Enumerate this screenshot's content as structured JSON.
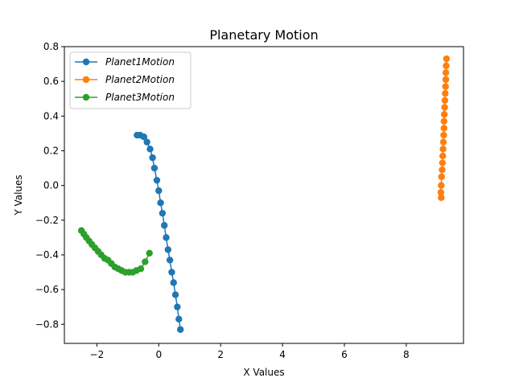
{
  "chart_data": {
    "type": "line",
    "title": "Planetary Motion",
    "xlabel": "X Values",
    "ylabel": "Y Values",
    "xlim": [
      -3.05,
      9.85
    ],
    "ylim": [
      -0.91,
      0.8
    ],
    "xticks": [
      -2,
      0,
      2,
      4,
      6,
      8
    ],
    "xtick_labels": [
      "−2",
      "0",
      "2",
      "4",
      "6",
      "8"
    ],
    "yticks": [
      -0.8,
      -0.6,
      -0.4,
      -0.2,
      0.0,
      0.2,
      0.4,
      0.6,
      0.8
    ],
    "ytick_labels": [
      "−0.8",
      "−0.6",
      "−0.4",
      "−0.2",
      "0.0",
      "0.2",
      "0.4",
      "0.6",
      "0.8"
    ],
    "grid": false,
    "legend_position": "top-left",
    "series": [
      {
        "name": "Planet1Motion",
        "color": "#1f77b4",
        "x": [
          -0.7,
          -0.6,
          -0.48,
          -0.38,
          -0.28,
          -0.2,
          -0.14,
          -0.06,
          0.0,
          0.06,
          0.12,
          0.18,
          0.24,
          0.3,
          0.36,
          0.42,
          0.48,
          0.54,
          0.6,
          0.65,
          0.7
        ],
        "y": [
          0.29,
          0.29,
          0.28,
          0.25,
          0.21,
          0.16,
          0.1,
          0.03,
          -0.03,
          -0.1,
          -0.16,
          -0.23,
          -0.3,
          -0.37,
          -0.43,
          -0.5,
          -0.56,
          -0.63,
          -0.7,
          -0.77,
          -0.83
        ]
      },
      {
        "name": "Planet2Motion",
        "color": "#ff7f0e",
        "x": [
          9.13,
          9.12,
          9.13,
          9.14,
          9.16,
          9.17,
          9.18,
          9.19,
          9.2,
          9.21,
          9.22,
          9.22,
          9.23,
          9.24,
          9.25,
          9.26,
          9.27,
          9.28,
          9.28,
          9.29,
          9.3
        ],
        "y": [
          -0.07,
          -0.04,
          0.0,
          0.05,
          0.09,
          0.13,
          0.17,
          0.21,
          0.25,
          0.29,
          0.33,
          0.37,
          0.41,
          0.45,
          0.49,
          0.53,
          0.57,
          0.61,
          0.65,
          0.69,
          0.73
        ]
      },
      {
        "name": "Planet3Motion",
        "color": "#2ca02c",
        "x": [
          -2.5,
          -2.42,
          -2.34,
          -2.25,
          -2.16,
          -2.06,
          -1.96,
          -1.86,
          -1.75,
          -1.64,
          -1.53,
          -1.42,
          -1.31,
          -1.2,
          -1.08,
          -0.96,
          -0.84,
          -0.72,
          -0.58,
          -0.44,
          -0.3
        ],
        "y": [
          -0.26,
          -0.28,
          -0.3,
          -0.32,
          -0.34,
          -0.36,
          -0.38,
          -0.4,
          -0.42,
          -0.43,
          -0.45,
          -0.47,
          -0.48,
          -0.49,
          -0.5,
          -0.5,
          -0.5,
          -0.49,
          -0.48,
          -0.44,
          -0.39
        ]
      }
    ]
  }
}
